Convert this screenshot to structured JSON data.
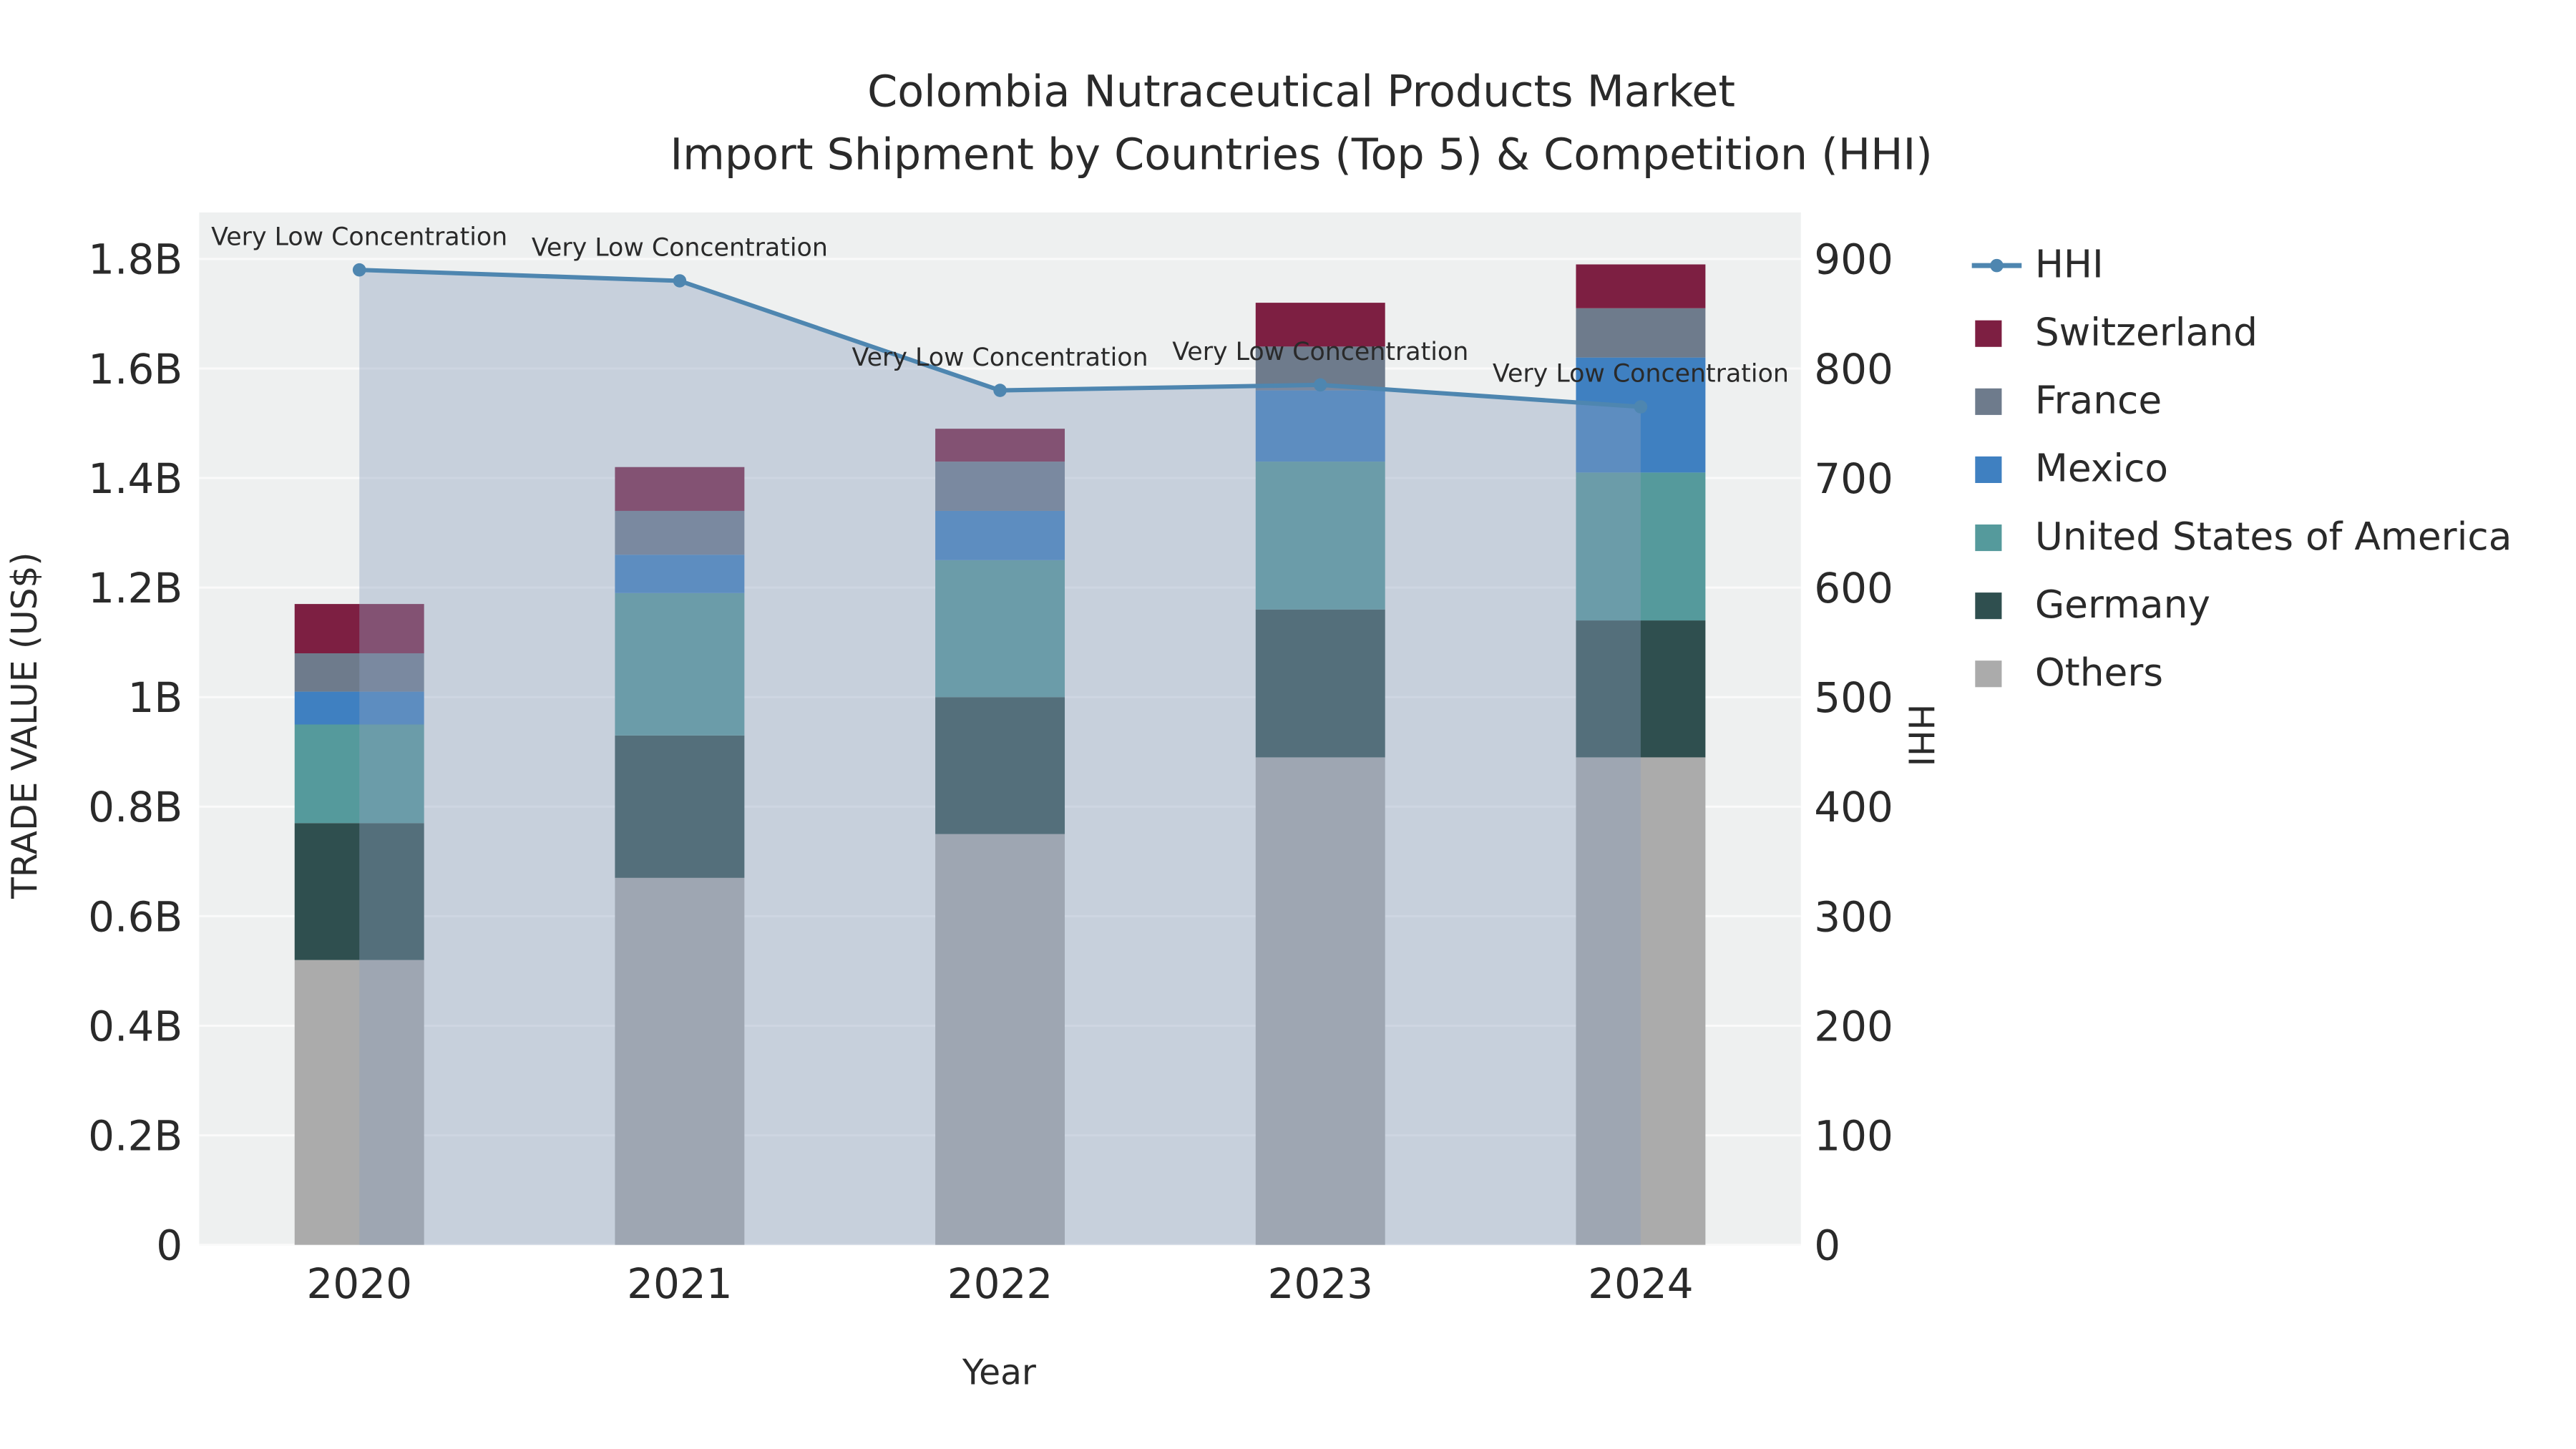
{
  "title": {
    "line1": "Colombia Nutraceutical Products Market",
    "line2": "Import Shipment by Countries (Top 5) & Competition (HHI)"
  },
  "chart_data": {
    "type": "bar",
    "subtype": "stacked-bars-with-hhi-line-and-area",
    "categories": [
      "2020",
      "2021",
      "2022",
      "2023",
      "2024"
    ],
    "series": [
      {
        "name": "Others",
        "color": "#ababab",
        "values_billion_usd": [
          0.52,
          0.67,
          0.75,
          0.89,
          0.89
        ]
      },
      {
        "name": "Germany",
        "color": "#2f4f4f",
        "values_billion_usd": [
          0.25,
          0.26,
          0.25,
          0.27,
          0.25
        ]
      },
      {
        "name": "United States of America",
        "color": "#559a9c",
        "values_billion_usd": [
          0.18,
          0.26,
          0.25,
          0.27,
          0.27
        ]
      },
      {
        "name": "Mexico",
        "color": "#3f80c1",
        "values_billion_usd": [
          0.06,
          0.07,
          0.09,
          0.13,
          0.21
        ]
      },
      {
        "name": "France",
        "color": "#6e7b8c",
        "values_billion_usd": [
          0.07,
          0.08,
          0.09,
          0.08,
          0.09
        ]
      },
      {
        "name": "Switzerland",
        "color": "#7d1f42",
        "values_billion_usd": [
          0.09,
          0.08,
          0.06,
          0.08,
          0.08
        ]
      }
    ],
    "bar_totals_billion_usd": [
      1.17,
      1.42,
      1.49,
      1.72,
      1.79
    ],
    "line_series": {
      "name": "HHI",
      "color": "#4e86b0",
      "area_fill_color": "#8da0bd",
      "area_fill_opacity": 0.4,
      "values": [
        890,
        880,
        780,
        785,
        765
      ],
      "annotations": [
        "Very Low Concentration",
        "Very Low Concentration",
        "Very Low Concentration",
        "Very Low Concentration",
        "Very Low Concentration"
      ]
    },
    "xlabel": "Year",
    "ylabel_left": "TRADE VALUE (US$)",
    "ylabel_right": "HHI",
    "ylim_left": [
      0,
      1800000000
    ],
    "ylim_right": [
      0,
      900
    ],
    "ytick_values_left": [
      0,
      0.2,
      0.4,
      0.6,
      0.8,
      1.0,
      1.2,
      1.4,
      1.6,
      1.8
    ],
    "ytick_labels_left": [
      "0",
      "0.2B",
      "0.4B",
      "0.6B",
      "0.8B",
      "1B",
      "1.2B",
      "1.4B",
      "1.6B",
      "1.8B"
    ],
    "ytick_values_right": [
      0,
      100,
      200,
      300,
      400,
      500,
      600,
      700,
      800,
      900
    ],
    "ytick_labels_right": [
      "0",
      "100",
      "200",
      "300",
      "400",
      "500",
      "600",
      "700",
      "800",
      "900"
    ],
    "grid": true,
    "plot_background": "#eef0f0",
    "legend_position": "right"
  },
  "legend": {
    "items": [
      {
        "label": "HHI",
        "marker": "line",
        "color": "#4e86b0"
      },
      {
        "label": "Switzerland",
        "marker": "square",
        "color": "#7d1f42"
      },
      {
        "label": "France",
        "marker": "square",
        "color": "#6e7b8c"
      },
      {
        "label": "Mexico",
        "marker": "square",
        "color": "#3f80c1"
      },
      {
        "label": "United States of America",
        "marker": "square",
        "color": "#559a9c"
      },
      {
        "label": "Germany",
        "marker": "square",
        "color": "#2f4f4f"
      },
      {
        "label": "Others",
        "marker": "square",
        "color": "#ababab"
      }
    ]
  }
}
